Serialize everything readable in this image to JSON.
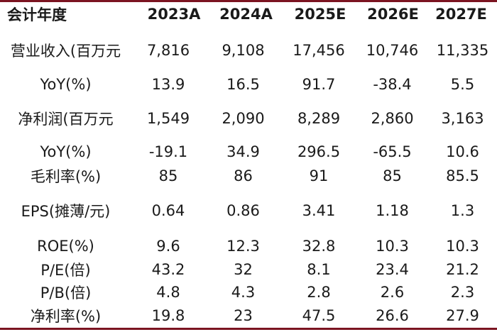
{
  "table": {
    "header": [
      "会计年度",
      "2023A",
      "2024A",
      "2025E",
      "2026E",
      "2027E"
    ],
    "rows": [
      {
        "label": "营业收入(百万元",
        "values": [
          "7,816",
          "9,108",
          "17,456",
          "10,746",
          "11,335"
        ]
      },
      {
        "label": "YoY(%)",
        "values": [
          "13.9",
          "16.5",
          "91.7",
          "-38.4",
          "5.5"
        ]
      },
      {
        "label": "净利润(百万元",
        "values": [
          "1,549",
          "2,090",
          "8,289",
          "2,860",
          "3,163"
        ]
      },
      {
        "label": "YoY(%)",
        "values": [
          "-19.1",
          "34.9",
          "296.5",
          "-65.5",
          "10.6"
        ]
      },
      {
        "label": "毛利率(%)",
        "values": [
          "85",
          "86",
          "91",
          "85",
          "85.5"
        ]
      },
      {
        "label": "EPS(摊薄/元)",
        "values": [
          "0.64",
          "0.86",
          "3.41",
          "1.18",
          "1.3"
        ]
      },
      {
        "label": "ROE(%)",
        "values": [
          "9.6",
          "12.3",
          "32.8",
          "10.3",
          "10.3"
        ]
      },
      {
        "label": "P/E(倍)",
        "values": [
          "43.2",
          "32",
          "8.1",
          "23.4",
          "21.2"
        ]
      },
      {
        "label": "P/B(倍)",
        "values": [
          "4.8",
          "4.3",
          "2.8",
          "2.6",
          "2.3"
        ]
      },
      {
        "label": "净利率(%)",
        "values": [
          "19.8",
          "23",
          "47.5",
          "26.6",
          "27.9"
        ]
      }
    ]
  },
  "colors": {
    "rule": "#7b1421",
    "text": "#1a1a1a",
    "background": "#ffffff"
  }
}
